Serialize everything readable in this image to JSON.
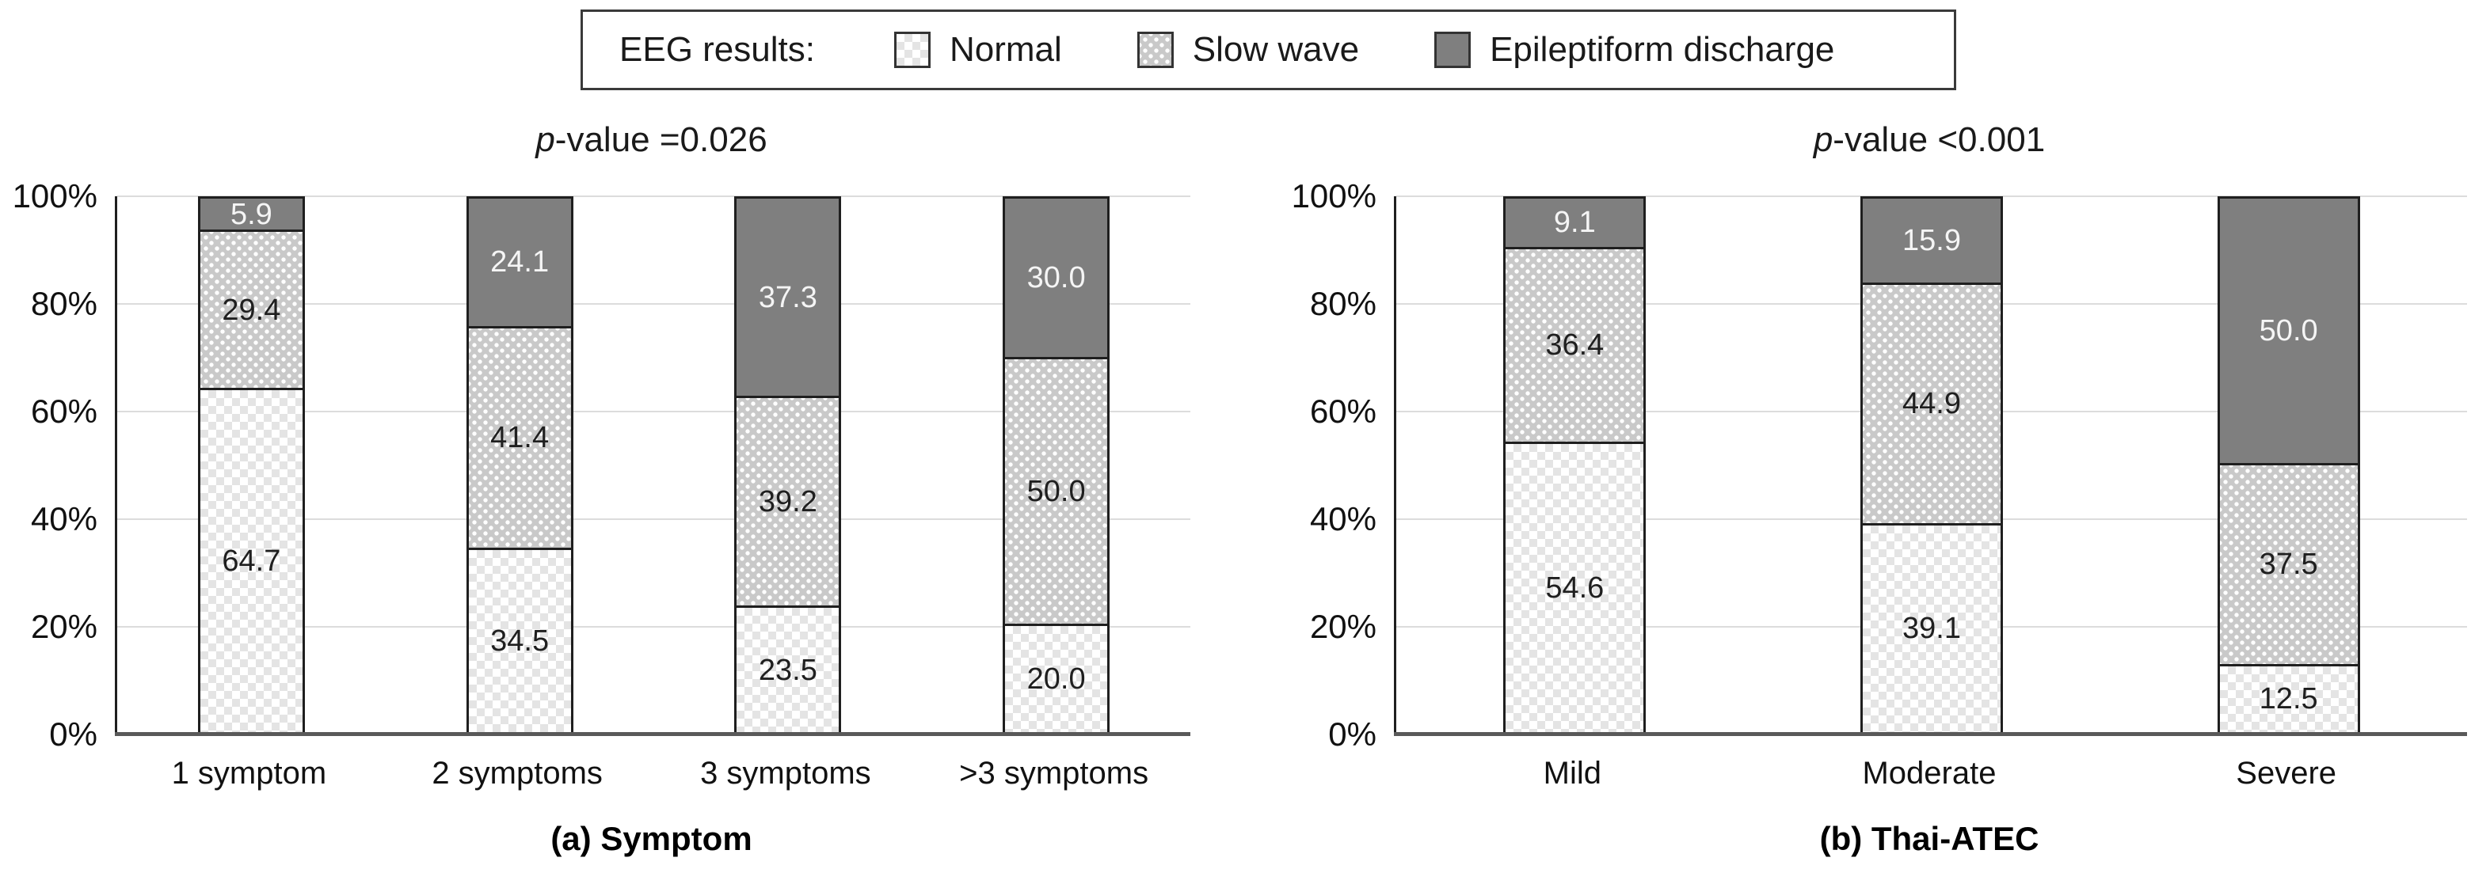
{
  "legend": {
    "title": "EEG results:",
    "items": [
      {
        "label": "Normal",
        "pattern": "checker"
      },
      {
        "label": "Slow wave",
        "pattern": "dots"
      },
      {
        "label": "Epileptiform discharge",
        "pattern": "solid"
      }
    ]
  },
  "colors": {
    "normal_fill": "#ffffff",
    "normal_checker": "#e4e4e4",
    "slow_wave_fill": "#c9c9c9",
    "slow_wave_dot": "#ffffff",
    "epileptiform_fill": "#7f7f7f",
    "gridline": "#dcdcdc",
    "axis_baseline": "#595959",
    "bar_border": "#1f1f1f"
  },
  "chart_data": [
    {
      "type": "bar",
      "stacked": true,
      "percent": true,
      "title_italic": "p",
      "title_text": "-value =0.026",
      "caption": "(a) Symptom",
      "categories": [
        "1 symptom",
        "2 symptoms",
        "3 symptoms",
        ">3 symptoms"
      ],
      "series": [
        {
          "name": "Normal",
          "values": [
            64.7,
            34.5,
            23.5,
            20.0
          ]
        },
        {
          "name": "Slow wave",
          "values": [
            29.4,
            41.4,
            39.2,
            50.0
          ]
        },
        {
          "name": "Epileptiform discharge",
          "values": [
            5.9,
            24.1,
            37.3,
            30.0
          ]
        }
      ],
      "ylabel": "",
      "yticks": [
        "0%",
        "20%",
        "40%",
        "60%",
        "80%",
        "100%"
      ],
      "ylim": [
        0,
        100
      ],
      "grid": true,
      "legend_position": "top-shared"
    },
    {
      "type": "bar",
      "stacked": true,
      "percent": true,
      "title_italic": "p",
      "title_text": "-value <0.001",
      "caption": "(b) Thai-ATEC",
      "categories": [
        "Mild",
        "Moderate",
        "Severe"
      ],
      "series": [
        {
          "name": "Normal",
          "values": [
            54.6,
            39.1,
            12.5
          ]
        },
        {
          "name": "Slow wave",
          "values": [
            36.4,
            44.9,
            37.5
          ]
        },
        {
          "name": "Epileptiform discharge",
          "values": [
            9.1,
            15.9,
            50.0
          ]
        }
      ],
      "ylabel": "",
      "yticks": [
        "0%",
        "20%",
        "40%",
        "60%",
        "80%",
        "100%"
      ],
      "ylim": [
        0,
        100
      ],
      "grid": true,
      "legend_position": "top-shared"
    }
  ]
}
